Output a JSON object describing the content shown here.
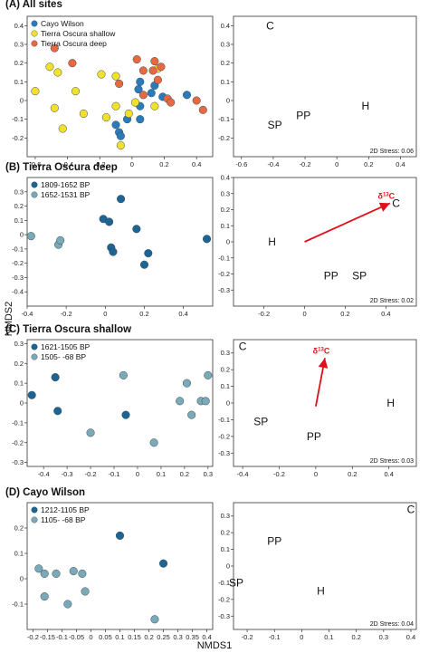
{
  "figure": {
    "xlabel": "NMDS1",
    "ylabel": "NMDS2"
  },
  "colors": {
    "cayo_wilson": "#2b7bba",
    "tierra_oscura_shallow": "#f2e12a",
    "tierra_oscura_deep": "#e8683f",
    "period_early": "#1c6494",
    "period_late": "#7aa9b8",
    "vector": "#e0101a"
  },
  "chart_data": [
    {
      "type": "scatter",
      "title": "(A)  All sites",
      "xlim": [
        -0.65,
        0.5
      ],
      "ylim": [
        -0.3,
        0.45
      ],
      "xticks": [
        -0.6,
        -0.4,
        -0.2,
        0.0,
        0.2,
        0.4
      ],
      "yticks": [
        -0.2,
        -0.1,
        0.0,
        0.1,
        0.2,
        0.3,
        0.4
      ],
      "legend_position": "top-left",
      "series": [
        {
          "name": "Cayo Wilson",
          "color_key": "cayo_wilson",
          "points": [
            [
              -0.03,
              -0.1
            ],
            [
              -0.1,
              -0.13
            ],
            [
              -0.08,
              -0.17
            ],
            [
              -0.07,
              -0.19
            ],
            [
              0.05,
              0.1
            ],
            [
              0.05,
              -0.03
            ],
            [
              0.05,
              -0.1
            ],
            [
              0.12,
              0.04
            ],
            [
              0.19,
              0.02
            ],
            [
              0.34,
              0.03
            ],
            [
              0.14,
              0.08
            ],
            [
              0.04,
              0.06
            ]
          ]
        },
        {
          "name": "Tierra Oscura shallow",
          "color_key": "tierra_oscura_shallow",
          "points": [
            [
              -0.6,
              0.05
            ],
            [
              -0.51,
              0.18
            ],
            [
              -0.48,
              -0.04
            ],
            [
              -0.46,
              0.15
            ],
            [
              -0.43,
              -0.15
            ],
            [
              -0.35,
              0.05
            ],
            [
              -0.3,
              -0.07
            ],
            [
              -0.19,
              0.14
            ],
            [
              -0.16,
              -0.09
            ],
            [
              -0.1,
              -0.03
            ],
            [
              -0.1,
              0.13
            ],
            [
              -0.07,
              -0.24
            ],
            [
              -0.02,
              -0.07
            ],
            [
              0.02,
              -0.01
            ],
            [
              0.14,
              -0.03
            ],
            [
              0.16,
              0.17
            ]
          ]
        },
        {
          "name": "Tierra Oscura deep",
          "color_key": "tierra_oscura_deep",
          "points": [
            [
              -0.48,
              0.28
            ],
            [
              -0.37,
              0.2
            ],
            [
              -0.08,
              0.09
            ],
            [
              0.03,
              0.22
            ],
            [
              0.07,
              0.03
            ],
            [
              0.07,
              0.16
            ],
            [
              0.13,
              0.16
            ],
            [
              0.14,
              0.21
            ],
            [
              0.18,
              0.18
            ],
            [
              0.22,
              0.01
            ],
            [
              0.24,
              -0.01
            ],
            [
              0.4,
              0.0
            ],
            [
              0.44,
              -0.05
            ],
            [
              0.16,
              0.11
            ]
          ]
        }
      ]
    },
    {
      "type": "scatter",
      "xlim": [
        -0.65,
        0.5
      ],
      "ylim": [
        -0.3,
        0.45
      ],
      "xticks": [
        -0.6,
        -0.4,
        -0.2,
        0.0,
        0.2,
        0.4
      ],
      "yticks": [
        -0.2,
        -0.1,
        0.0,
        0.1,
        0.2,
        0.3,
        0.4
      ],
      "labels": [
        {
          "text": "C",
          "x": -0.42,
          "y": 0.4
        },
        {
          "text": "SP",
          "x": -0.39,
          "y": -0.13
        },
        {
          "text": "PP",
          "x": -0.21,
          "y": -0.08
        },
        {
          "text": "H",
          "x": 0.18,
          "y": -0.03
        }
      ],
      "annotation": "2D Stress: 0.06"
    },
    {
      "type": "scatter",
      "title": "(B)  Tierra Oscura deep",
      "xlim": [
        -0.4,
        0.55
      ],
      "ylim": [
        -0.5,
        0.4
      ],
      "xticks": [
        -0.4,
        -0.2,
        0.0,
        0.2,
        0.4
      ],
      "yticks": [
        -0.4,
        -0.3,
        -0.2,
        -0.1,
        0.0,
        0.1,
        0.2,
        0.3
      ],
      "legend_position": "top-left",
      "series": [
        {
          "name": "1809-1652 BP",
          "color_key": "period_early",
          "points": [
            [
              -0.01,
              0.11
            ],
            [
              0.02,
              0.09
            ],
            [
              0.08,
              0.25
            ],
            [
              0.16,
              0.04
            ],
            [
              0.03,
              -0.09
            ],
            [
              0.04,
              -0.12
            ],
            [
              0.22,
              -0.13
            ],
            [
              0.2,
              -0.21
            ],
            [
              0.52,
              -0.03
            ]
          ]
        },
        {
          "name": "1652-1531 BP",
          "color_key": "period_late",
          "points": [
            [
              -0.38,
              -0.01
            ],
            [
              -0.24,
              -0.07
            ],
            [
              -0.23,
              -0.04
            ]
          ]
        }
      ]
    },
    {
      "type": "scatter",
      "xlim": [
        -0.35,
        0.55
      ],
      "ylim": [
        -0.4,
        0.4
      ],
      "xticks": [
        -0.2,
        0.0,
        0.2,
        0.4
      ],
      "yticks": [
        -0.3,
        -0.2,
        -0.1,
        0.0,
        0.1,
        0.2,
        0.3,
        0.4
      ],
      "labels": [
        {
          "text": "C",
          "x": 0.45,
          "y": 0.24
        },
        {
          "text": "H",
          "x": -0.16,
          "y": 0.0
        },
        {
          "text": "PP",
          "x": 0.13,
          "y": -0.21
        },
        {
          "text": "SP",
          "x": 0.27,
          "y": -0.21
        }
      ],
      "vector": {
        "label_main": "δ",
        "label_sup": "13",
        "label_tail": "C",
        "from": [
          0.0,
          0.0
        ],
        "to": [
          0.42,
          0.24
        ]
      },
      "annotation": "2D Stress: 0.02"
    },
    {
      "type": "scatter",
      "title": "(C)  Tierra Oscura shallow",
      "xlim": [
        -0.47,
        0.32
      ],
      "ylim": [
        -0.32,
        0.32
      ],
      "xticks": [
        -0.4,
        -0.3,
        -0.2,
        -0.1,
        0.0,
        0.1,
        0.2,
        0.3
      ],
      "yticks": [
        -0.3,
        -0.2,
        -0.1,
        0.0,
        0.1,
        0.2,
        0.3
      ],
      "legend_position": "top-left",
      "series": [
        {
          "name": "1621-1505 BP",
          "color_key": "period_early",
          "points": [
            [
              -0.45,
              0.04
            ],
            [
              -0.35,
              0.13
            ],
            [
              -0.34,
              -0.04
            ],
            [
              -0.05,
              -0.06
            ]
          ]
        },
        {
          "name": "1505- -68 BP",
          "color_key": "period_late",
          "points": [
            [
              -0.2,
              -0.15
            ],
            [
              -0.06,
              0.14
            ],
            [
              0.07,
              -0.2
            ],
            [
              0.18,
              0.01
            ],
            [
              0.23,
              -0.06
            ],
            [
              0.27,
              0.01
            ],
            [
              0.29,
              0.01
            ],
            [
              0.3,
              0.14
            ],
            [
              0.21,
              0.1
            ]
          ]
        }
      ]
    },
    {
      "type": "scatter",
      "xlim": [
        -0.45,
        0.55
      ],
      "ylim": [
        -0.38,
        0.38
      ],
      "xticks": [
        -0.4,
        -0.2,
        0.0,
        0.2,
        0.4
      ],
      "yticks": [
        -0.3,
        -0.2,
        -0.1,
        0.0,
        0.1,
        0.2,
        0.3
      ],
      "labels": [
        {
          "text": "C",
          "x": -0.4,
          "y": 0.34
        },
        {
          "text": "SP",
          "x": -0.3,
          "y": -0.11
        },
        {
          "text": "PP",
          "x": -0.01,
          "y": -0.2
        },
        {
          "text": "H",
          "x": 0.41,
          "y": 0.0
        }
      ],
      "vector": {
        "label_main": "δ",
        "label_sup": "13",
        "label_tail": "C",
        "from": [
          0.0,
          -0.02
        ],
        "to": [
          0.05,
          0.27
        ]
      },
      "annotation": "2D Stress: 0.03"
    },
    {
      "type": "scatter",
      "title": "(D)  Cayo Wilson",
      "xlim": [
        -0.22,
        0.42
      ],
      "ylim": [
        -0.2,
        0.3
      ],
      "xticks": [
        -0.2,
        -0.15,
        -0.1,
        -0.05,
        0.0,
        0.05,
        0.1,
        0.15,
        0.2,
        0.25,
        0.3,
        0.35,
        0.4
      ],
      "yticks": [
        -0.1,
        0.0,
        0.1,
        0.2
      ],
      "legend_position": "top-left",
      "series": [
        {
          "name": "1212-1105 BP",
          "color_key": "period_early",
          "points": [
            [
              0.1,
              0.17
            ],
            [
              0.25,
              0.06
            ]
          ]
        },
        {
          "name": "1105- -68 BP",
          "color_key": "period_late",
          "points": [
            [
              -0.18,
              0.04
            ],
            [
              -0.16,
              0.02
            ],
            [
              -0.12,
              0.02
            ],
            [
              -0.06,
              0.03
            ],
            [
              -0.03,
              0.02
            ],
            [
              -0.08,
              -0.1
            ],
            [
              -0.16,
              -0.07
            ],
            [
              -0.02,
              -0.05
            ],
            [
              0.22,
              -0.16
            ]
          ]
        }
      ]
    },
    {
      "type": "scatter",
      "xlim": [
        -0.25,
        0.42
      ],
      "ylim": [
        -0.38,
        0.38
      ],
      "xticks": [
        -0.2,
        -0.1,
        0.0,
        0.1,
        0.2,
        0.3,
        0.4
      ],
      "yticks": [
        -0.3,
        -0.2,
        -0.1,
        0.0,
        0.1,
        0.2,
        0.3
      ],
      "labels": [
        {
          "text": "C",
          "x": 0.4,
          "y": 0.34
        },
        {
          "text": "PP",
          "x": -0.1,
          "y": 0.15
        },
        {
          "text": "SP",
          "x": -0.24,
          "y": -0.1
        },
        {
          "text": "H",
          "x": 0.07,
          "y": -0.15
        }
      ],
      "annotation": "2D Stress: 0.04"
    }
  ]
}
